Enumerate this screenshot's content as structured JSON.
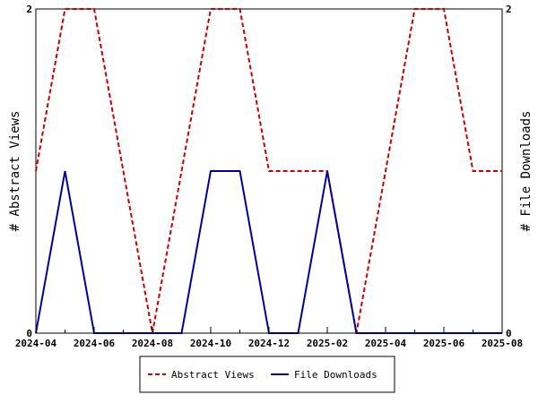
{
  "chart_data": {
    "type": "line",
    "x_ticks": [
      "2024-04",
      "2024-06",
      "2024-08",
      "2024-10",
      "2024-12",
      "2025-02",
      "2025-04",
      "2025-06",
      "2025-08"
    ],
    "x": [
      "2024-04",
      "2024-05",
      "2024-06",
      "2024-07",
      "2024-08",
      "2024-09",
      "2024-10",
      "2024-11",
      "2024-12",
      "2025-01",
      "2025-02",
      "2025-03",
      "2025-04",
      "2025-05",
      "2025-06",
      "2025-07",
      "2025-08"
    ],
    "series": [
      {
        "name": "Abstract Views",
        "axis": "left",
        "color": "#cc0000",
        "dash": "dashed",
        "values": [
          1,
          2,
          2,
          1,
          0,
          1,
          2,
          2,
          1,
          1,
          1,
          0,
          1,
          2,
          2,
          1,
          1
        ]
      },
      {
        "name": "File Downloads",
        "axis": "right",
        "color": "#000099",
        "dash": "solid",
        "values": [
          0,
          1,
          0,
          0,
          0,
          0,
          1,
          1,
          0,
          0,
          1,
          0,
          0,
          0,
          0,
          0,
          0
        ]
      }
    ],
    "ylabel_left": "# Abstract Views",
    "ylabel_right": "# File Downloads",
    "ylim_left": [
      0,
      2
    ],
    "ylim_right": [
      0,
      2
    ],
    "y_ticks_left": [
      "0",
      "2"
    ],
    "y_ticks_right": [
      "0",
      "2"
    ],
    "legend_position": "bottom-center",
    "grid": false
  }
}
